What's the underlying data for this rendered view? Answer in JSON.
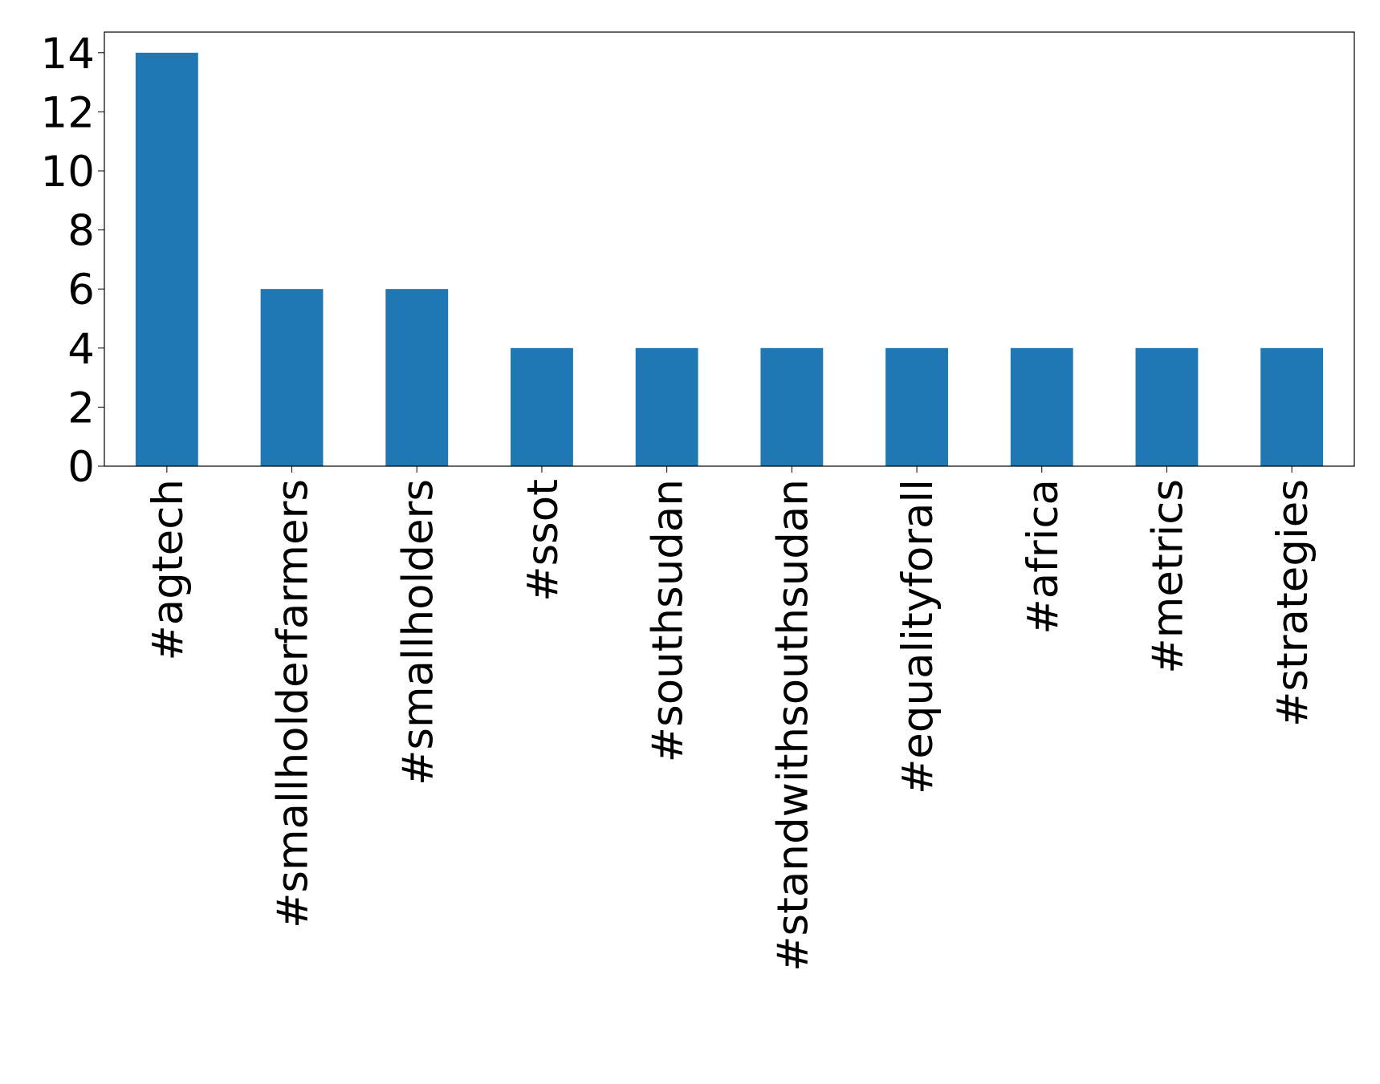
{
  "chart_data": {
    "type": "bar",
    "categories": [
      "#agtech",
      "#smallholderfarmers",
      "#smallholders",
      "#ssot",
      "#southsudan",
      "#standwithsouthsudan",
      "#equalityforall",
      "#africa",
      "#metrics",
      "#strategies"
    ],
    "values": [
      14,
      6,
      6,
      4,
      4,
      4,
      4,
      4,
      4,
      4
    ],
    "color": "#1f77b4",
    "ylim": [
      0,
      14.7
    ],
    "yticks": [
      0,
      2,
      4,
      6,
      8,
      10,
      12,
      14
    ],
    "grid": false
  }
}
